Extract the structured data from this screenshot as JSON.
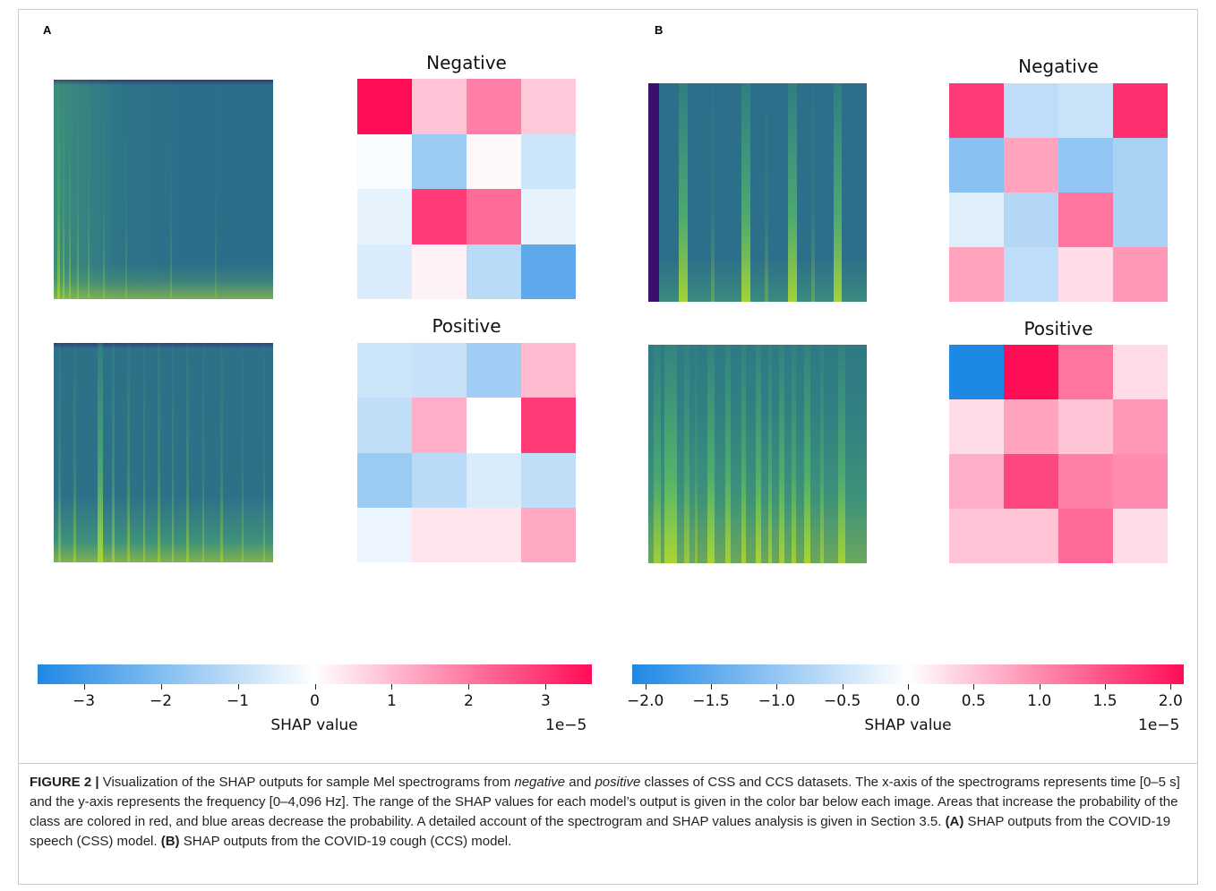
{
  "panels": {
    "a": {
      "letter": "A",
      "negative_title": "Negative",
      "positive_title": "Positive",
      "negative_heatmap": [
        [
          3.6,
          0.9,
          1.9,
          0.8
        ],
        [
          -0.1,
          -1.6,
          0.1,
          -0.8
        ],
        [
          -0.4,
          2.9,
          2.2,
          -0.4
        ],
        [
          -0.6,
          0.2,
          -1.1,
          -2.6
        ]
      ],
      "positive_heatmap": [
        [
          -0.8,
          -0.9,
          -1.5,
          1.0
        ],
        [
          -1.0,
          1.2,
          0.0,
          2.9
        ],
        [
          -1.6,
          -1.1,
          -0.6,
          -1.0
        ],
        [
          -0.3,
          0.4,
          0.4,
          1.3
        ]
      ],
      "colorbar": {
        "ticks": [
          "−3",
          "−2",
          "−1",
          "0",
          "1",
          "2",
          "3"
        ],
        "tick_values": [
          -3,
          -2,
          -1,
          0,
          1,
          2,
          3
        ],
        "min": -3.6,
        "max": 3.6,
        "label": "SHAP value",
        "multiplier": "1e−5"
      }
    },
    "b": {
      "letter": "B",
      "negative_title": "Negative",
      "positive_title": "Positive",
      "negative_heatmap": [
        [
          1.7,
          -0.6,
          -0.5,
          1.8
        ],
        [
          -1.1,
          0.8,
          -1.0,
          -0.8
        ],
        [
          -0.3,
          -0.7,
          1.2,
          -0.8
        ],
        [
          0.8,
          -0.6,
          0.3,
          0.9
        ]
      ],
      "positive_heatmap": [
        [
          -2.1,
          2.1,
          1.2,
          0.3
        ],
        [
          0.3,
          0.8,
          0.5,
          0.9
        ],
        [
          0.7,
          1.6,
          1.1,
          1.0
        ],
        [
          0.5,
          0.5,
          1.3,
          0.3
        ]
      ],
      "colorbar": {
        "ticks": [
          "−2.0",
          "−1.5",
          "−1.0",
          "−0.5",
          "0.0",
          "0.5",
          "1.0",
          "1.5",
          "2.0"
        ],
        "tick_values": [
          -2.0,
          -1.5,
          -1.0,
          -0.5,
          0.0,
          0.5,
          1.0,
          1.5,
          2.0
        ],
        "min": -2.1,
        "max": 2.1,
        "label": "SHAP value",
        "multiplier": "1e−5"
      }
    }
  },
  "caption": {
    "label": "FIGURE 2 |",
    "text1": " Visualization of the SHAP outputs for sample Mel spectrograms from ",
    "negative_word": "negative",
    "text2": " and ",
    "positive_word": "positive",
    "text3": " classes of CSS and CCS datasets. The x-axis of the spectrograms represents time [0–5 s] and the y-axis represents the frequency [0–4,096 Hz]. The range of the SHAP values for each model’s output is given in the color bar below each image. Areas that increase the probability of the class are colored in red, and blue areas decrease the probability. A detailed account of the spectrogram and SHAP values analysis is given in Section 3.5. ",
    "a_label": "(A)",
    "a_text": " SHAP outputs from the COVID-19 speech (CSS) model. ",
    "b_label": "(B)",
    "b_text": " SHAP outputs from the COVID-19 cough (CCS) model."
  },
  "colors": {
    "negative_extreme": "#1e88e5",
    "positive_extreme": "#ff0d57",
    "spectrogram_base": "#2a6f8b",
    "spectrogram_bright": "#b5de2b",
    "spectrogram_dark": "#3b0f70"
  }
}
